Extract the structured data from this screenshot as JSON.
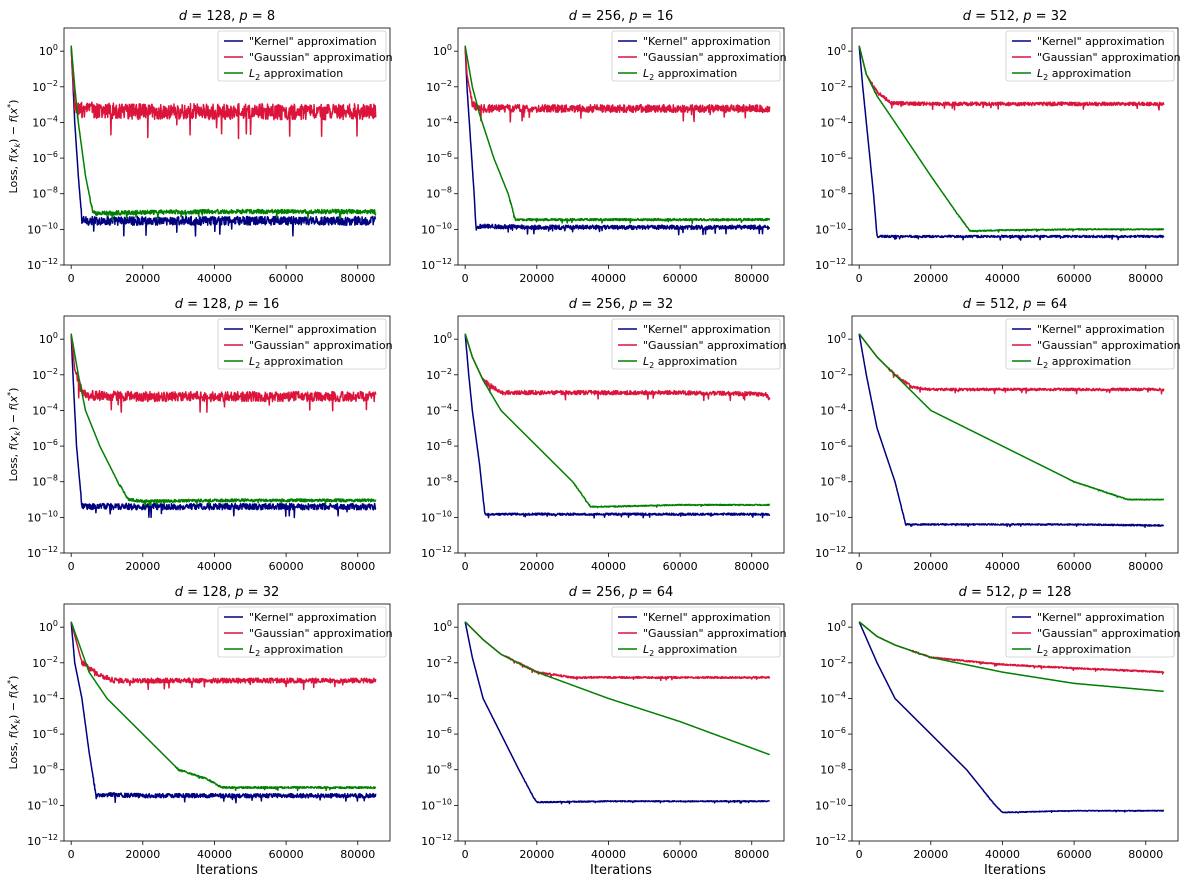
{
  "figure": {
    "series_names": [
      "\"Kernel\" approximation",
      "\"Gaussian\" approximation",
      "L2 approximation"
    ],
    "series_colors": [
      "#000080",
      "#dc143c",
      "#008000"
    ],
    "xlabel": "Iterations",
    "ylabel": "Loss, f(x_k) − f(x*)",
    "xticks": [
      0,
      20000,
      40000,
      60000,
      80000
    ],
    "xtick_labels": [
      "0",
      "20000",
      "40000",
      "60000",
      "80000"
    ],
    "ytick_exponents": [
      0,
      -2,
      -4,
      -6,
      -8,
      -10,
      -12
    ]
  },
  "chart_data": [
    {
      "type": "line",
      "title": "d = 128, p = 8",
      "d": 128,
      "p": 8,
      "xlabel": "",
      "ylabel": "Loss, f(x_k) − f(x*)",
      "xlim": [
        0,
        85000
      ],
      "ylim": [
        1e-12,
        10
      ],
      "yscale": "log",
      "legend": "top-right",
      "grid": false,
      "series": [
        {
          "name": "\"Kernel\" approximation",
          "color": "#000080",
          "x": [
            0,
            300,
            1000,
            2000,
            3000,
            6000,
            20000,
            40000,
            60000,
            85000
          ],
          "values": [
            2,
            0.1,
            0.0001,
            1e-07,
            3e-10,
            3e-10,
            3e-10,
            3e-10,
            3e-10,
            3e-10
          ],
          "noise": 0.25
        },
        {
          "name": "\"Gaussian\" approximation",
          "color": "#dc143c",
          "x": [
            0,
            300,
            1000,
            1500,
            3000,
            20000,
            40000,
            60000,
            85000
          ],
          "values": [
            2,
            0.1,
            0.001,
            0.0004,
            0.0005,
            0.0004,
            0.0004,
            0.0004,
            0.0004
          ],
          "noise": 0.45
        },
        {
          "name": "L2 approximation",
          "color": "#008000",
          "x": [
            0,
            1000,
            2000,
            4000,
            6000,
            7000,
            20000,
            40000,
            60000,
            85000
          ],
          "values": [
            2,
            0.01,
            0.0001,
            1e-07,
            1e-09,
            8e-10,
            9e-10,
            1e-09,
            1e-09,
            1e-09
          ],
          "noise": 0.12
        }
      ]
    },
    {
      "type": "line",
      "title": "d = 256, p = 16",
      "d": 256,
      "p": 16,
      "xlabel": "",
      "ylabel": "",
      "xlim": [
        0,
        85000
      ],
      "ylim": [
        1e-12,
        10
      ],
      "yscale": "log",
      "legend": "top-right",
      "grid": false,
      "series": [
        {
          "name": "\"Kernel\" approximation",
          "color": "#000080",
          "x": [
            0,
            500,
            1500,
            2500,
            3000,
            20000,
            40000,
            60000,
            85000
          ],
          "values": [
            2,
            0.01,
            1e-05,
            1e-08,
            1.5e-10,
            1.3e-10,
            1.3e-10,
            1.3e-10,
            1.3e-10
          ],
          "noise": 0.12
        },
        {
          "name": "\"Gaussian\" approximation",
          "color": "#dc143c",
          "x": [
            0,
            500,
            2000,
            4000,
            20000,
            40000,
            60000,
            85000
          ],
          "values": [
            2,
            0.05,
            0.001,
            0.0006,
            0.0006,
            0.0006,
            0.0006,
            0.0006
          ],
          "noise": 0.22
        },
        {
          "name": "L2 approximation",
          "color": "#008000",
          "x": [
            0,
            2000,
            4000,
            8000,
            12000,
            14000,
            20000,
            40000,
            60000,
            85000
          ],
          "values": [
            2,
            0.01,
            0.0003,
            1e-06,
            1e-08,
            3.5e-10,
            3.5e-10,
            3.5e-10,
            3.5e-10,
            3.5e-10
          ],
          "noise": 0.06
        }
      ]
    },
    {
      "type": "line",
      "title": "d = 512, p = 32",
      "d": 512,
      "p": 32,
      "xlabel": "",
      "ylabel": "",
      "xlim": [
        0,
        85000
      ],
      "ylim": [
        1e-12,
        10
      ],
      "yscale": "log",
      "legend": "top-right",
      "grid": false,
      "series": [
        {
          "name": "\"Kernel\" approximation",
          "color": "#000080",
          "x": [
            0,
            1000,
            2000,
            4000,
            5000,
            20000,
            40000,
            60000,
            85000
          ],
          "values": [
            2,
            0.01,
            0.0001,
            1e-08,
            4e-11,
            4e-11,
            4e-11,
            4e-11,
            4e-11
          ],
          "noise": 0.06
        },
        {
          "name": "\"Gaussian\" approximation",
          "color": "#dc143c",
          "x": [
            0,
            2000,
            5000,
            9000,
            20000,
            40000,
            60000,
            85000
          ],
          "values": [
            2,
            0.05,
            0.005,
            0.0012,
            0.0011,
            0.0011,
            0.0011,
            0.0011
          ],
          "noise": 0.1
        },
        {
          "name": "L2 approximation",
          "color": "#008000",
          "x": [
            0,
            2000,
            5000,
            10000,
            20000,
            28000,
            31000,
            40000,
            60000,
            85000
          ],
          "values": [
            2,
            0.05,
            0.003,
            0.0001,
            1e-07,
            5e-10,
            8e-11,
            9e-11,
            1e-10,
            1e-10
          ],
          "noise": 0.03
        }
      ]
    },
    {
      "type": "line",
      "title": "d = 128, p = 16",
      "d": 128,
      "p": 16,
      "xlabel": "",
      "ylabel": "Loss, f(x_k) − f(x*)",
      "xlim": [
        0,
        85000
      ],
      "ylim": [
        1e-12,
        10
      ],
      "yscale": "log",
      "legend": "top-right",
      "grid": false,
      "series": [
        {
          "name": "\"Kernel\" approximation",
          "color": "#000080",
          "x": [
            0,
            500,
            1500,
            3000,
            20000,
            40000,
            60000,
            85000
          ],
          "values": [
            2,
            0.01,
            1e-06,
            4e-10,
            4e-10,
            4e-10,
            4e-10,
            4e-10
          ],
          "noise": 0.18
        },
        {
          "name": "\"Gaussian\" approximation",
          "color": "#dc143c",
          "x": [
            0,
            1000,
            3000,
            5000,
            20000,
            40000,
            60000,
            85000
          ],
          "values": [
            2,
            0.02,
            0.001,
            0.0007,
            0.0006,
            0.0006,
            0.0006,
            0.0006
          ],
          "noise": 0.28
        },
        {
          "name": "L2 approximation",
          "color": "#008000",
          "x": [
            0,
            2000,
            4000,
            8000,
            13000,
            16000,
            20000,
            40000,
            60000,
            85000
          ],
          "values": [
            2,
            0.01,
            0.0001,
            1e-06,
            1e-08,
            1e-09,
            8e-10,
            9e-10,
            9e-10,
            9e-10
          ],
          "noise": 0.08
        }
      ]
    },
    {
      "type": "line",
      "title": "d = 256, p = 32",
      "d": 256,
      "p": 32,
      "xlabel": "",
      "ylabel": "",
      "xlim": [
        0,
        85000
      ],
      "ylim": [
        1e-12,
        10
      ],
      "yscale": "log",
      "legend": "top-right",
      "grid": false,
      "series": [
        {
          "name": "\"Kernel\" approximation",
          "color": "#000080",
          "x": [
            0,
            1000,
            2000,
            4000,
            5500,
            6000,
            20000,
            40000,
            60000,
            85000
          ],
          "values": [
            2,
            0.01,
            0.0001,
            1e-07,
            1.5e-10,
            1.5e-10,
            1.5e-10,
            1.5e-10,
            1.5e-10,
            1.5e-10
          ],
          "noise": 0.06
        },
        {
          "name": "\"Gaussian\" approximation",
          "color": "#dc143c",
          "x": [
            0,
            2000,
            5000,
            10000,
            20000,
            40000,
            60000,
            84000,
            85000
          ],
          "values": [
            2,
            0.1,
            0.005,
            0.001,
            0.001,
            0.001,
            0.001,
            0.0008,
            0.0004
          ],
          "noise": 0.12
        },
        {
          "name": "L2 approximation",
          "color": "#008000",
          "x": [
            0,
            2000,
            5000,
            10000,
            20000,
            30000,
            35000,
            40000,
            60000,
            85000
          ],
          "values": [
            2,
            0.1,
            0.005,
            0.0001,
            1e-06,
            1e-08,
            4e-10,
            4e-10,
            5e-10,
            5e-10
          ],
          "noise": 0.03
        }
      ]
    },
    {
      "type": "line",
      "title": "d = 512, p = 64",
      "d": 512,
      "p": 64,
      "xlabel": "",
      "ylabel": "",
      "xlim": [
        0,
        85000
      ],
      "ylim": [
        1e-12,
        10
      ],
      "yscale": "log",
      "legend": "top-right",
      "grid": false,
      "series": [
        {
          "name": "\"Kernel\" approximation",
          "color": "#000080",
          "x": [
            0,
            2000,
            5000,
            10000,
            13000,
            20000,
            40000,
            60000,
            85000
          ],
          "values": [
            2,
            0.01,
            1e-05,
            1e-08,
            4e-11,
            4e-11,
            4e-11,
            4e-11,
            3.5e-11
          ],
          "noise": 0.04
        },
        {
          "name": "\"Gaussian\" approximation",
          "color": "#dc143c",
          "x": [
            0,
            5000,
            10000,
            15000,
            20000,
            40000,
            60000,
            85000
          ],
          "values": [
            2,
            0.1,
            0.01,
            0.002,
            0.0015,
            0.0015,
            0.0015,
            0.0015
          ],
          "noise": 0.07
        },
        {
          "name": "L2 approximation",
          "color": "#008000",
          "x": [
            0,
            5000,
            10000,
            20000,
            40000,
            60000,
            75000,
            85000
          ],
          "values": [
            2,
            0.1,
            0.01,
            0.0001,
            1e-06,
            1e-08,
            1e-09,
            1e-09
          ],
          "noise": 0.02
        }
      ]
    },
    {
      "type": "line",
      "title": "d = 128, p = 32",
      "d": 128,
      "p": 32,
      "xlabel": "Iterations",
      "ylabel": "Loss, f(x_k) − f(x*)",
      "xlim": [
        0,
        85000
      ],
      "ylim": [
        1e-12,
        10
      ],
      "yscale": "log",
      "legend": "top-right",
      "grid": false,
      "series": [
        {
          "name": "\"Kernel\" approximation",
          "color": "#000080",
          "x": [
            0,
            1000,
            3000,
            5000,
            7000,
            8000,
            20000,
            40000,
            60000,
            85000
          ],
          "values": [
            2,
            0.01,
            0.0001,
            1e-07,
            3e-10,
            4e-10,
            3.5e-10,
            3.5e-10,
            3.5e-10,
            3.5e-10
          ],
          "noise": 0.12
        },
        {
          "name": "\"Gaussian\" approximation",
          "color": "#dc143c",
          "x": [
            0,
            3000,
            8000,
            12000,
            20000,
            40000,
            60000,
            85000
          ],
          "values": [
            2,
            0.01,
            0.002,
            0.001,
            0.001,
            0.001,
            0.001,
            0.001
          ],
          "noise": 0.14
        },
        {
          "name": "L2 approximation",
          "color": "#008000",
          "x": [
            0,
            5000,
            10000,
            20000,
            30000,
            38000,
            42000,
            60000,
            85000
          ],
          "values": [
            2,
            0.003,
            0.0001,
            1e-06,
            1e-08,
            3e-09,
            1e-09,
            1e-09,
            1e-09
          ],
          "noise": 0.05
        }
      ]
    },
    {
      "type": "line",
      "title": "d = 256, p = 64",
      "d": 256,
      "p": 64,
      "xlabel": "Iterations",
      "ylabel": "",
      "xlim": [
        0,
        85000
      ],
      "ylim": [
        1e-12,
        10
      ],
      "yscale": "log",
      "legend": "top-right",
      "grid": false,
      "series": [
        {
          "name": "\"Kernel\" approximation",
          "color": "#000080",
          "x": [
            0,
            2000,
            5000,
            10000,
            15000,
            19000,
            20000,
            40000,
            60000,
            85000
          ],
          "values": [
            2,
            0.02,
            0.0001,
            1e-06,
            1e-08,
            3e-10,
            1.5e-10,
            1.7e-10,
            1.7e-10,
            1.7e-10
          ],
          "noise": 0.03
        },
        {
          "name": "\"Gaussian\" approximation",
          "color": "#dc143c",
          "x": [
            0,
            5000,
            10000,
            20000,
            30000,
            40000,
            60000,
            85000
          ],
          "values": [
            2,
            0.2,
            0.03,
            0.003,
            0.0015,
            0.0015,
            0.0015,
            0.0015
          ],
          "noise": 0.05
        },
        {
          "name": "L2 approximation",
          "color": "#008000",
          "x": [
            0,
            5000,
            10000,
            20000,
            40000,
            60000,
            85000
          ],
          "values": [
            2,
            0.2,
            0.03,
            0.003,
            0.0001,
            5e-06,
            7e-08
          ],
          "noise": 0.0
        }
      ]
    },
    {
      "type": "line",
      "title": "d = 512, p = 128",
      "d": 512,
      "p": 128,
      "xlabel": "Iterations",
      "ylabel": "",
      "xlim": [
        0,
        85000
      ],
      "ylim": [
        1e-12,
        10
      ],
      "yscale": "log",
      "legend": "top-right",
      "grid": false,
      "series": [
        {
          "name": "\"Kernel\" approximation",
          "color": "#000080",
          "x": [
            0,
            5000,
            10000,
            20000,
            30000,
            38000,
            40000,
            60000,
            85000
          ],
          "values": [
            2,
            0.01,
            0.0001,
            1e-06,
            1e-08,
            1e-10,
            4e-11,
            5e-11,
            5e-11
          ],
          "noise": 0.02
        },
        {
          "name": "\"Gaussian\" approximation",
          "color": "#dc143c",
          "x": [
            0,
            5000,
            10000,
            20000,
            40000,
            60000,
            85000
          ],
          "values": [
            2,
            0.3,
            0.1,
            0.02,
            0.008,
            0.005,
            0.003
          ],
          "noise": 0.04
        },
        {
          "name": "L2 approximation",
          "color": "#008000",
          "x": [
            0,
            5000,
            10000,
            20000,
            40000,
            60000,
            85000
          ],
          "values": [
            2,
            0.3,
            0.1,
            0.02,
            0.003,
            0.0007,
            0.00025
          ],
          "noise": 0.0
        }
      ]
    }
  ]
}
